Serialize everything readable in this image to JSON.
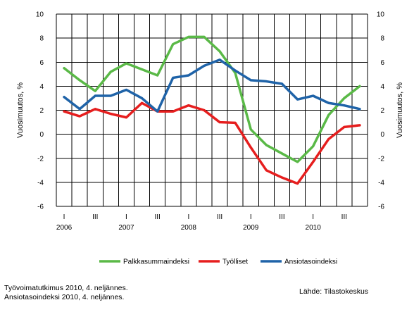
{
  "chart_data": {
    "type": "line",
    "ylabel_left": "Vuosimuutos, %",
    "ylabel_right": "Vuosimuutos, %",
    "ylim": [
      -6,
      10
    ],
    "yticks": [
      -6,
      -4,
      -2,
      0,
      2,
      4,
      6,
      8,
      10
    ],
    "x": [
      "2006 I",
      "2006 II",
      "2006 III",
      "2006 IV",
      "2007 I",
      "2007 II",
      "2007 III",
      "2007 IV",
      "2008 I",
      "2008 II",
      "2008 III",
      "2008 IV",
      "2009 I",
      "2009 II",
      "2009 III",
      "2009 IV",
      "2010 I",
      "2010 II",
      "2010 III",
      "2010 IV"
    ],
    "quarter_marks": [
      "I",
      "",
      "III",
      "",
      "I",
      "",
      "III",
      "",
      "I",
      "",
      "III",
      "",
      "I",
      "",
      "III",
      "",
      "I",
      "",
      "III",
      ""
    ],
    "year_labels": [
      "2006",
      "2007",
      "2008",
      "2009",
      "2010"
    ],
    "grid": true,
    "legend_position": "bottom",
    "series": [
      {
        "name": "Palkkasummaindeksi",
        "color": "#5ab947",
        "values": [
          5.5,
          4.5,
          3.6,
          5.2,
          5.9,
          5.4,
          4.9,
          7.5,
          8.1,
          8.1,
          6.9,
          5.1,
          0.4,
          -0.9,
          -1.6,
          -2.3,
          -1.0,
          1.6,
          3.0,
          4.0
        ]
      },
      {
        "name": "Työlliset",
        "color": "#e61e1e",
        "values": [
          1.9,
          1.5,
          2.1,
          1.7,
          1.4,
          2.6,
          1.9,
          1.9,
          2.4,
          2.0,
          1.0,
          0.95,
          -1.1,
          -3.0,
          -3.6,
          -4.1,
          -2.3,
          -0.4,
          0.6,
          0.75
        ]
      },
      {
        "name": "Ansiotasoindeksi",
        "color": "#1f63a8",
        "values": [
          3.1,
          2.1,
          3.2,
          3.2,
          3.7,
          3.0,
          1.9,
          4.7,
          4.9,
          5.7,
          6.2,
          5.3,
          4.5,
          4.4,
          4.2,
          2.9,
          3.2,
          2.6,
          2.4,
          2.1
        ]
      }
    ]
  },
  "notes": {
    "source_line1": "Työvoimatutkimus 2010, 4. neljännes.",
    "source_line2": "Ansiotasoindeksi 2010, 4. neljännes.",
    "credit": "Lähde: Tilastokeskus"
  }
}
